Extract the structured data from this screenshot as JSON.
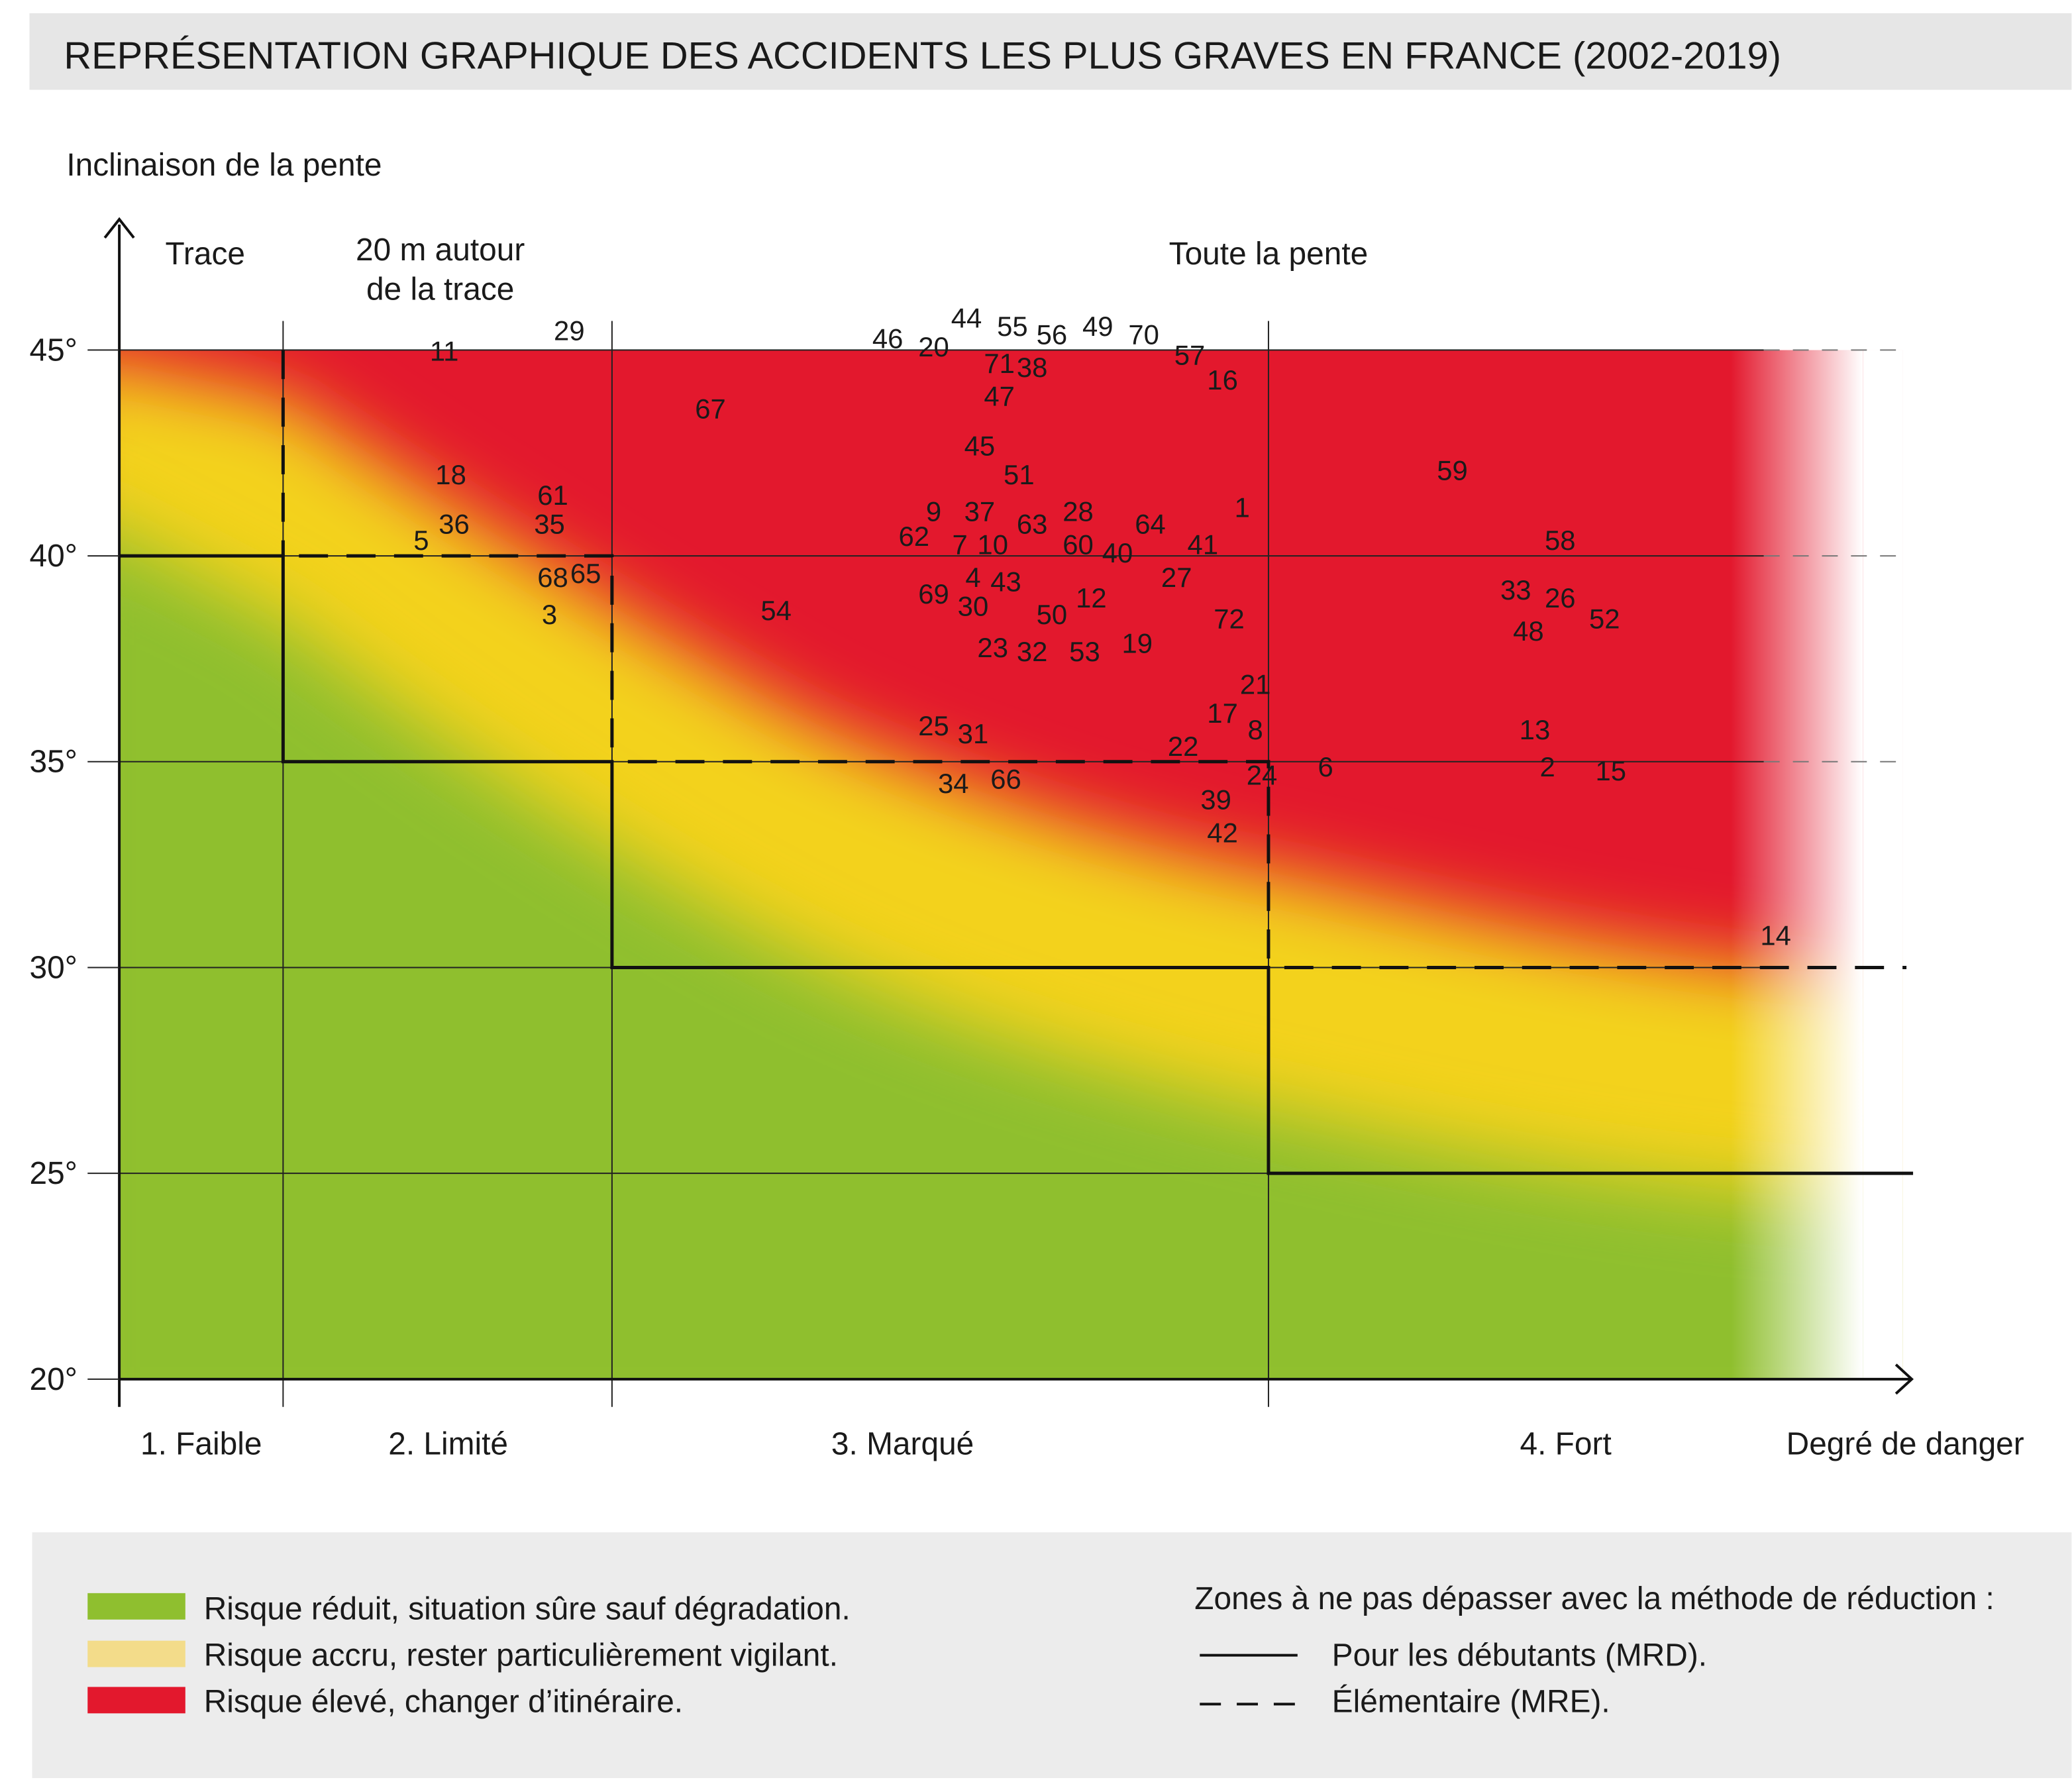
{
  "title": "REPRÉSENTATION GRAPHIQUE DES ACCIDENTS LES PLUS GRAVES EN FRANCE (2002-2019)",
  "colors": {
    "green": "#8fbf2f",
    "yellow": "#f3d21c",
    "red": "#e3182d",
    "header_bg": "#e6e6e6",
    "legend_bg": "#ececec"
  },
  "legend": {
    "items": [
      {
        "color": "#8fbf2f",
        "label": "Risque réduit, situation sûre sauf dégradation."
      },
      {
        "color": "#f3dc8a",
        "label": "Risque accru, rester particulièrement vigilant."
      },
      {
        "color": "#e3182d",
        "label": "Risque élevé, changer d’itinéraire."
      }
    ],
    "zones_title": "Zones à ne pas dépasser avec la méthode de réduction :",
    "lines": [
      {
        "style": "solid",
        "label": "Pour les débutants (MRD)."
      },
      {
        "style": "dashed",
        "label": "Élémentaire (MRE)."
      }
    ]
  },
  "chart_data": {
    "type": "scatter",
    "title": "REPRÉSENTATION GRAPHIQUE DES ACCIDENTS LES PLUS GRAVES EN FRANCE (2002-2019)",
    "ylabel": "Inclinaison de la pente",
    "xlabel": "Degré de danger",
    "ylim": [
      20,
      45
    ],
    "yticks": [
      "20°",
      "25°",
      "30°",
      "35°",
      "40°",
      "45°"
    ],
    "ytick_values": [
      20,
      25,
      30,
      35,
      40,
      45
    ],
    "xlim": [
      0.5,
      4.5
    ],
    "x_categories": [
      {
        "value": 1,
        "label": "1. Faible"
      },
      {
        "value": 2,
        "label": "2. Limité"
      },
      {
        "value": 3,
        "label": "3. Marqué"
      },
      {
        "value": 4,
        "label": "4. Fort"
      }
    ],
    "zone_headers": [
      {
        "label": "Trace"
      },
      {
        "label": "20 m autour",
        "label2": "de la trace"
      },
      {
        "label": "Toute la pente"
      }
    ],
    "grid": true,
    "mrd_limit": [
      {
        "danger": 1,
        "max_slope": 40
      },
      {
        "danger": 2,
        "max_slope": 35
      },
      {
        "danger": 3,
        "max_slope": 30
      },
      {
        "danger": 4,
        "max_slope": 25
      }
    ],
    "mre_limit": [
      {
        "danger": 1,
        "max_slope": 45
      },
      {
        "danger": 2,
        "max_slope": 40
      },
      {
        "danger": 3,
        "max_slope": 35
      },
      {
        "danger": 4,
        "max_slope": 30
      }
    ],
    "points": [
      {
        "label": "11",
        "x": 1.99,
        "y": 45.0
      },
      {
        "label": "29",
        "x": 2.37,
        "y": 45.5
      },
      {
        "label": "18",
        "x": 2.01,
        "y": 42.0
      },
      {
        "label": "61",
        "x": 2.32,
        "y": 41.5
      },
      {
        "label": "36",
        "x": 2.02,
        "y": 40.8
      },
      {
        "label": "35",
        "x": 2.31,
        "y": 40.8
      },
      {
        "label": "5",
        "x": 1.92,
        "y": 40.4
      },
      {
        "label": "68",
        "x": 2.32,
        "y": 39.5
      },
      {
        "label": "65",
        "x": 2.42,
        "y": 39.6
      },
      {
        "label": "3",
        "x": 2.31,
        "y": 38.6
      },
      {
        "label": "67",
        "x": 2.65,
        "y": 43.6
      },
      {
        "label": "54",
        "x": 2.75,
        "y": 38.7
      },
      {
        "label": "46",
        "x": 2.92,
        "y": 45.3
      },
      {
        "label": "20",
        "x": 2.99,
        "y": 45.1
      },
      {
        "label": "44",
        "x": 3.04,
        "y": 45.8
      },
      {
        "label": "55",
        "x": 3.11,
        "y": 45.6
      },
      {
        "label": "56",
        "x": 3.17,
        "y": 45.4
      },
      {
        "label": "49",
        "x": 3.24,
        "y": 45.6
      },
      {
        "label": "70",
        "x": 3.31,
        "y": 45.4
      },
      {
        "label": "57",
        "x": 3.38,
        "y": 44.9
      },
      {
        "label": "71",
        "x": 3.09,
        "y": 44.7
      },
      {
        "label": "38",
        "x": 3.14,
        "y": 44.6
      },
      {
        "label": "47",
        "x": 3.09,
        "y": 43.9
      },
      {
        "label": "16",
        "x": 3.43,
        "y": 44.3
      },
      {
        "label": "45",
        "x": 3.06,
        "y": 42.7
      },
      {
        "label": "51",
        "x": 3.12,
        "y": 42.0
      },
      {
        "label": "9",
        "x": 2.99,
        "y": 41.1
      },
      {
        "label": "37",
        "x": 3.06,
        "y": 41.1
      },
      {
        "label": "63",
        "x": 3.14,
        "y": 40.8
      },
      {
        "label": "28",
        "x": 3.21,
        "y": 41.1
      },
      {
        "label": "64",
        "x": 3.32,
        "y": 40.8
      },
      {
        "label": "1",
        "x": 3.46,
        "y": 41.2
      },
      {
        "label": "62",
        "x": 2.96,
        "y": 40.5
      },
      {
        "label": "7",
        "x": 3.03,
        "y": 40.3
      },
      {
        "label": "10",
        "x": 3.08,
        "y": 40.3
      },
      {
        "label": "60",
        "x": 3.21,
        "y": 40.3
      },
      {
        "label": "40",
        "x": 3.27,
        "y": 40.1
      },
      {
        "label": "41",
        "x": 3.4,
        "y": 40.3
      },
      {
        "label": "27",
        "x": 3.36,
        "y": 39.5
      },
      {
        "label": "4",
        "x": 3.05,
        "y": 39.5
      },
      {
        "label": "43",
        "x": 3.1,
        "y": 39.4
      },
      {
        "label": "69",
        "x": 2.99,
        "y": 39.1
      },
      {
        "label": "30",
        "x": 3.05,
        "y": 38.8
      },
      {
        "label": "12",
        "x": 3.23,
        "y": 39.0
      },
      {
        "label": "72",
        "x": 3.44,
        "y": 38.5
      },
      {
        "label": "50",
        "x": 3.17,
        "y": 38.6
      },
      {
        "label": "23",
        "x": 3.08,
        "y": 37.8
      },
      {
        "label": "32",
        "x": 3.14,
        "y": 37.7
      },
      {
        "label": "53",
        "x": 3.22,
        "y": 37.7
      },
      {
        "label": "19",
        "x": 3.3,
        "y": 37.9
      },
      {
        "label": "21",
        "x": 3.48,
        "y": 36.9
      },
      {
        "label": "17",
        "x": 3.43,
        "y": 36.2
      },
      {
        "label": "8",
        "x": 3.48,
        "y": 35.8
      },
      {
        "label": "25",
        "x": 2.99,
        "y": 35.9
      },
      {
        "label": "31",
        "x": 3.05,
        "y": 35.7
      },
      {
        "label": "22",
        "x": 3.37,
        "y": 35.4
      },
      {
        "label": "34",
        "x": 3.02,
        "y": 34.5
      },
      {
        "label": "66",
        "x": 3.1,
        "y": 34.6
      },
      {
        "label": "24",
        "x": 3.49,
        "y": 34.7
      },
      {
        "label": "39",
        "x": 3.42,
        "y": 34.1
      },
      {
        "label": "42",
        "x": 3.43,
        "y": 33.3
      },
      {
        "label": "6",
        "x": 3.59,
        "y": 34.9
      },
      {
        "label": "59",
        "x": 3.79,
        "y": 42.1
      },
      {
        "label": "58",
        "x": 3.96,
        "y": 40.4
      },
      {
        "label": "33",
        "x": 3.89,
        "y": 39.2
      },
      {
        "label": "26",
        "x": 3.96,
        "y": 39.0
      },
      {
        "label": "52",
        "x": 4.03,
        "y": 38.5
      },
      {
        "label": "48",
        "x": 3.91,
        "y": 38.2
      },
      {
        "label": "13",
        "x": 3.92,
        "y": 35.8
      },
      {
        "label": "2",
        "x": 3.94,
        "y": 34.9
      },
      {
        "label": "15",
        "x": 4.04,
        "y": 34.8
      },
      {
        "label": "14",
        "x": 4.3,
        "y": 30.8
      }
    ]
  }
}
